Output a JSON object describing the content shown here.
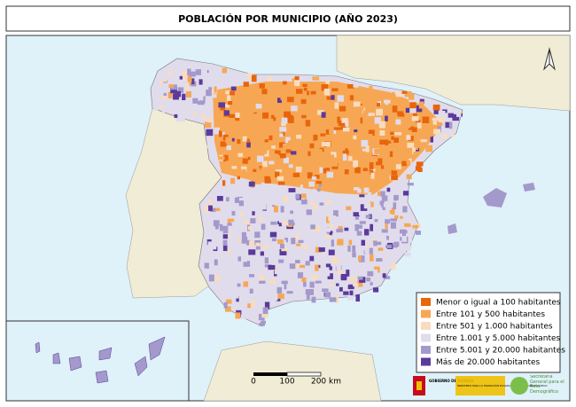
{
  "title": "POBLACIÓN POR MUNICIPIO (AÑO 2023)",
  "legend": [
    {
      "label": "Menor o igual a 100 habitantes",
      "color": "#e8650c"
    },
    {
      "label": "Entre 101 y 500 habitantes",
      "color": "#f7a753"
    },
    {
      "label": "Entre 501 y 1.000 habitantes",
      "color": "#f9dcc0"
    },
    {
      "label": "Entre 1.001 y 5.000 habitantes",
      "color": "#e0dcec"
    },
    {
      "label": "Entre 5.001 y 20.000 habitantes",
      "color": "#a399cb"
    },
    {
      "label": "Más de 20.000 habitantes",
      "color": "#5b3a9b"
    }
  ],
  "scale": [
    "0",
    "100",
    "200 km"
  ],
  "logos": {
    "government": "GOBIERNO DE ESPAÑA",
    "ministry": "MINISTERIO PARA LA TRANSICIÓN ECOLÓGICA Y EL RETO DEMOGRÁFICO",
    "secretariat": "Secretaría General para el Reto Demográfico"
  }
}
